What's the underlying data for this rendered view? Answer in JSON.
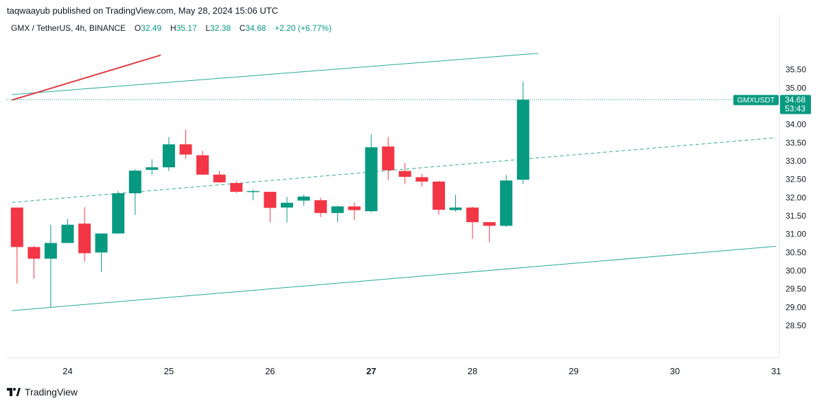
{
  "header": {
    "published_line": "taqwaayub published on TradingView.com, May 28, 2024 15:06 UTC"
  },
  "legend": {
    "symbol": "GMX / TetherUS, 4h, BINANCE",
    "open_label": "O",
    "open": "32.49",
    "high_label": "H",
    "high": "35.17",
    "low_label": "L",
    "low": "32.38",
    "close_label": "C",
    "close": "34.68",
    "change": "+2.20 (+6.77%)"
  },
  "price_tag": {
    "symbol": "GMXUSDT",
    "price": "34.68",
    "countdown": "53:43"
  },
  "footer": {
    "brand": "TradingView"
  },
  "colors": {
    "up": "#089981",
    "down": "#f23645",
    "channel": "#26a69a",
    "trend": "#e03a45"
  },
  "chart_data": {
    "type": "candlestick",
    "x_ticks": [
      "24",
      "25",
      "26",
      "27",
      "28",
      "29",
      "30",
      "31"
    ],
    "x_ticks_bold": [
      "27"
    ],
    "y_ticks": [
      "35.50",
      "35.00",
      "34.50",
      "34.00",
      "33.50",
      "33.00",
      "32.50",
      "32.00",
      "31.50",
      "31.00",
      "30.50",
      "30.00",
      "29.50",
      "29.00",
      "28.50"
    ],
    "ylim": [
      28.4,
      35.9
    ],
    "x_range_days": [
      23.45,
      31.0
    ],
    "candles": [
      {
        "t": 23.5,
        "o": 31.73,
        "h": 31.73,
        "l": 29.65,
        "c": 30.65
      },
      {
        "t": 23.667,
        "o": 30.65,
        "h": 30.68,
        "l": 29.78,
        "c": 30.33
      },
      {
        "t": 23.833,
        "o": 30.33,
        "h": 31.26,
        "l": 29.0,
        "c": 30.76
      },
      {
        "t": 24.0,
        "o": 30.76,
        "h": 31.42,
        "l": 30.76,
        "c": 31.26
      },
      {
        "t": 24.167,
        "o": 31.29,
        "h": 31.74,
        "l": 30.25,
        "c": 30.48
      },
      {
        "t": 24.333,
        "o": 30.5,
        "h": 31.02,
        "l": 29.97,
        "c": 31.02
      },
      {
        "t": 24.5,
        "o": 31.02,
        "h": 32.18,
        "l": 31.02,
        "c": 32.12
      },
      {
        "t": 24.667,
        "o": 32.12,
        "h": 32.78,
        "l": 31.53,
        "c": 32.74
      },
      {
        "t": 24.833,
        "o": 32.76,
        "h": 33.05,
        "l": 32.62,
        "c": 32.83
      },
      {
        "t": 25.0,
        "o": 32.83,
        "h": 33.66,
        "l": 32.73,
        "c": 33.46
      },
      {
        "t": 25.167,
        "o": 33.46,
        "h": 33.86,
        "l": 33.06,
        "c": 33.18
      },
      {
        "t": 25.333,
        "o": 33.16,
        "h": 33.28,
        "l": 32.62,
        "c": 32.63
      },
      {
        "t": 25.5,
        "o": 32.63,
        "h": 32.73,
        "l": 32.4,
        "c": 32.42
      },
      {
        "t": 25.667,
        "o": 32.4,
        "h": 32.45,
        "l": 32.13,
        "c": 32.16
      },
      {
        "t": 25.833,
        "o": 32.16,
        "h": 32.22,
        "l": 31.93,
        "c": 32.18
      },
      {
        "t": 26.0,
        "o": 32.16,
        "h": 32.16,
        "l": 31.32,
        "c": 31.72
      },
      {
        "t": 26.167,
        "o": 31.73,
        "h": 32.02,
        "l": 31.32,
        "c": 31.86
      },
      {
        "t": 26.333,
        "o": 31.92,
        "h": 32.08,
        "l": 31.78,
        "c": 32.03
      },
      {
        "t": 26.5,
        "o": 31.93,
        "h": 32.0,
        "l": 31.47,
        "c": 31.58
      },
      {
        "t": 26.667,
        "o": 31.58,
        "h": 31.78,
        "l": 31.33,
        "c": 31.76
      },
      {
        "t": 26.833,
        "o": 31.76,
        "h": 31.87,
        "l": 31.38,
        "c": 31.66
      },
      {
        "t": 27.0,
        "o": 31.63,
        "h": 33.73,
        "l": 31.6,
        "c": 33.38
      },
      {
        "t": 27.167,
        "o": 33.4,
        "h": 33.66,
        "l": 32.48,
        "c": 32.75
      },
      {
        "t": 27.333,
        "o": 32.73,
        "h": 32.95,
        "l": 32.37,
        "c": 32.57
      },
      {
        "t": 27.5,
        "o": 32.56,
        "h": 32.65,
        "l": 32.3,
        "c": 32.44
      },
      {
        "t": 27.667,
        "o": 32.44,
        "h": 32.46,
        "l": 31.53,
        "c": 31.67
      },
      {
        "t": 27.833,
        "o": 31.66,
        "h": 32.08,
        "l": 31.62,
        "c": 31.73
      },
      {
        "t": 28.0,
        "o": 31.73,
        "h": 31.75,
        "l": 30.87,
        "c": 31.33
      },
      {
        "t": 28.167,
        "o": 31.33,
        "h": 31.33,
        "l": 30.78,
        "c": 31.23
      },
      {
        "t": 28.333,
        "o": 31.23,
        "h": 32.62,
        "l": 31.2,
        "c": 32.47
      },
      {
        "t": 28.5,
        "o": 32.49,
        "h": 35.17,
        "l": 32.38,
        "c": 34.68
      }
    ],
    "current_price": 34.68,
    "lines": [
      {
        "kind": "channel-upper",
        "t1": 23.45,
        "p1": 34.82,
        "t2": 28.65,
        "p2": 35.95,
        "style": "solid"
      },
      {
        "kind": "channel-middle",
        "t1": 23.45,
        "p1": 31.87,
        "t2": 31.0,
        "p2": 33.64,
        "style": "dashed"
      },
      {
        "kind": "channel-lower",
        "t1": 23.45,
        "p1": 28.91,
        "t2": 31.0,
        "p2": 30.67,
        "style": "solid"
      },
      {
        "kind": "trendline",
        "t1": 23.45,
        "p1": 34.67,
        "t2": 24.92,
        "p2": 35.9,
        "style": "solid"
      }
    ]
  }
}
